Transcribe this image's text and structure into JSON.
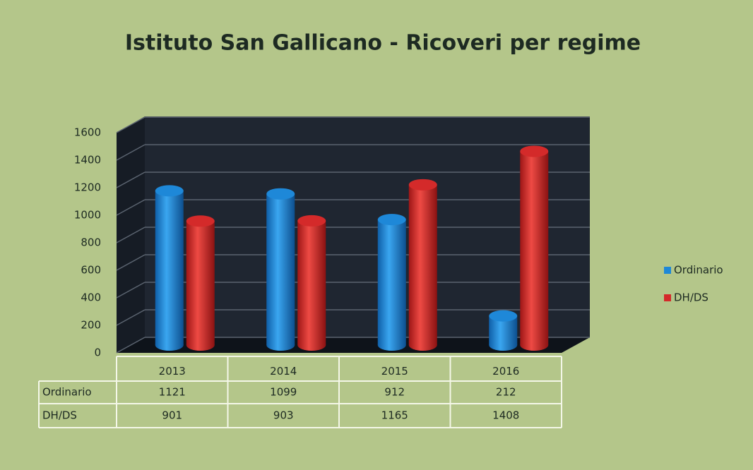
{
  "chart_data": {
    "type": "bar",
    "title": "Istituto San Gallicano - Ricoveri per regime",
    "categories": [
      "2013",
      "2014",
      "2015",
      "2016"
    ],
    "series": [
      {
        "name": "Ordinario",
        "color": "#1e88d8",
        "values": [
          1121,
          1099,
          912,
          212
        ]
      },
      {
        "name": "DH/DS",
        "color": "#d42a2a",
        "values": [
          901,
          903,
          1165,
          1408
        ]
      }
    ],
    "ylim": [
      0,
      1600
    ],
    "yticks": [
      0,
      200,
      400,
      600,
      800,
      1000,
      1200,
      1400,
      1600
    ],
    "grid": true,
    "legend": "right"
  }
}
